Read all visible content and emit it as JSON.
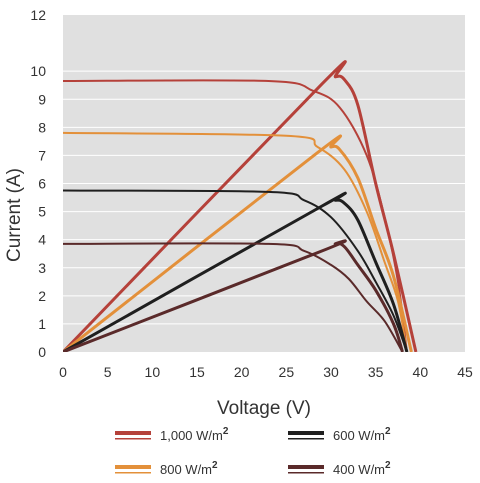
{
  "chart_data": {
    "type": "line",
    "title": "",
    "xlabel": "Voltage (V)",
    "ylabel": "Current (A)",
    "xlim": [
      0,
      45
    ],
    "ylim": [
      0,
      12
    ],
    "x_ticks": [
      "0",
      "5",
      "10",
      "15",
      "20",
      "25",
      "30",
      "35",
      "40",
      "45"
    ],
    "y_ticks": [
      "0",
      "1",
      "2",
      "3",
      "4",
      "5",
      "6",
      "7",
      "8",
      "9",
      "10",
      "12"
    ],
    "y_tick_values": [
      0,
      1,
      2,
      3,
      4,
      5,
      6,
      7,
      8,
      9,
      10,
      12
    ],
    "grid": true,
    "legend_position": "bottom",
    "series": [
      {
        "name": "1,000 W/m²",
        "legend_label": "1,000 W/m",
        "superscript": "2",
        "color": "#b5413a",
        "current": [
          [
            0,
            9.65
          ],
          [
            23,
            9.65
          ],
          [
            28,
            9.3
          ],
          [
            31,
            8.7
          ],
          [
            34,
            7.0
          ],
          [
            36,
            4.8
          ],
          [
            37.5,
            2.5
          ],
          [
            38.5,
            0
          ]
        ],
        "power": [
          [
            0,
            0
          ],
          [
            29,
            9.55
          ],
          [
            30.5,
            9.8
          ],
          [
            31.5,
            9.7
          ],
          [
            33,
            8.8
          ],
          [
            35,
            6.0
          ],
          [
            37,
            3.5
          ],
          [
            39.5,
            0
          ]
        ]
      },
      {
        "name": "800 W/m²",
        "legend_label": "800 W/m",
        "superscript": "2",
        "color": "#e3903a",
        "current": [
          [
            0,
            7.8
          ],
          [
            25,
            7.7
          ],
          [
            28.5,
            7.3
          ],
          [
            31.5,
            6.5
          ],
          [
            34,
            5.0
          ],
          [
            36,
            3.2
          ],
          [
            37.5,
            1.8
          ],
          [
            38.5,
            0
          ]
        ],
        "power": [
          [
            0,
            0
          ],
          [
            28.5,
            7.1
          ],
          [
            30,
            7.3
          ],
          [
            31,
            7.2
          ],
          [
            33,
            6.2
          ],
          [
            35,
            4.4
          ],
          [
            37,
            2.7
          ],
          [
            39,
            0
          ]
        ]
      },
      {
        "name": "600 W/m²",
        "legend_label": "600 W/m",
        "superscript": "2",
        "color": "#1f1f1f",
        "current": [
          [
            0,
            5.75
          ],
          [
            23,
            5.7
          ],
          [
            27,
            5.4
          ],
          [
            30,
            4.8
          ],
          [
            33,
            3.6
          ],
          [
            35,
            2.5
          ],
          [
            37,
            1.3
          ],
          [
            38.5,
            0
          ]
        ],
        "power": [
          [
            0,
            0
          ],
          [
            29,
            5.2
          ],
          [
            30.5,
            5.4
          ],
          [
            31.5,
            5.3
          ],
          [
            33,
            4.7
          ],
          [
            35,
            3.2
          ],
          [
            37,
            1.7
          ],
          [
            38.5,
            0
          ]
        ]
      },
      {
        "name": "400 W/m²",
        "legend_label": "400 W/m",
        "superscript": "2",
        "color": "#5a2a2a",
        "current": [
          [
            0,
            3.85
          ],
          [
            23,
            3.85
          ],
          [
            27,
            3.6
          ],
          [
            30,
            3.1
          ],
          [
            32,
            2.6
          ],
          [
            34,
            1.8
          ],
          [
            36,
            1.1
          ],
          [
            38,
            0
          ]
        ],
        "power": [
          [
            0,
            0
          ],
          [
            29,
            3.6
          ],
          [
            30.5,
            3.85
          ],
          [
            31.5,
            3.75
          ],
          [
            33,
            3.1
          ],
          [
            35,
            2.2
          ],
          [
            37,
            1.0
          ],
          [
            38,
            0
          ]
        ]
      }
    ]
  }
}
